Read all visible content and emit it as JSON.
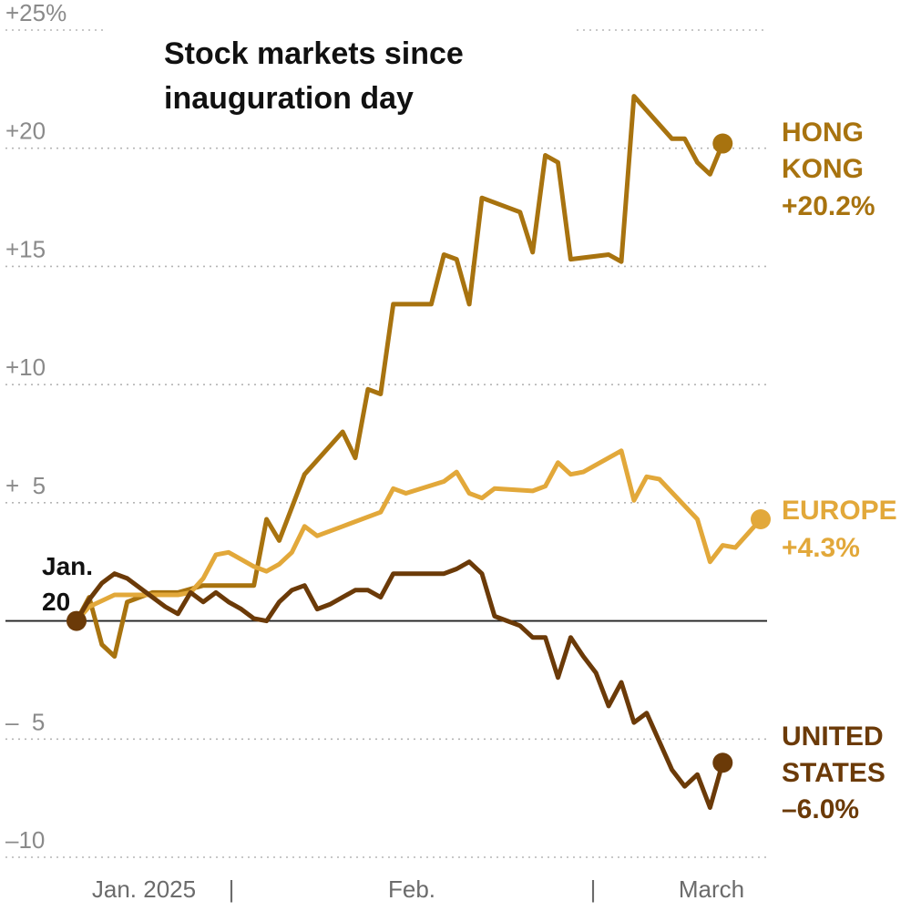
{
  "chart_data": {
    "type": "line",
    "title_lines": [
      "Stock markets since",
      "inauguration day"
    ],
    "start_label_lines": [
      "Jan.",
      "20"
    ],
    "y_axis": {
      "ylim": [
        -10,
        25
      ],
      "ticks": [
        25,
        20,
        15,
        10,
        5,
        -5,
        -10
      ],
      "tick_labels": [
        "+25%",
        "+20",
        "+15",
        "+10",
        "+  5",
        "–  5",
        "–10"
      ]
    },
    "x_axis": {
      "labels": [
        "Jan. 2025",
        "Feb.",
        "March"
      ],
      "separators": [
        "|",
        "|"
      ]
    },
    "day_range": [
      0,
      54
    ],
    "grid": true,
    "zero_line": true,
    "series": [
      {
        "name": "HONG KONG",
        "end_label_lines": [
          "HONG",
          "KONG",
          "+20.2%"
        ],
        "end_value": 20.2,
        "color": "#a8730f",
        "points": [
          [
            0,
            0
          ],
          [
            1,
            1
          ],
          [
            2,
            -1
          ],
          [
            3,
            -1.5
          ],
          [
            4,
            0.8
          ],
          [
            6,
            1.2
          ],
          [
            8,
            1.2
          ],
          [
            10,
            1.5
          ],
          [
            12,
            1.5
          ],
          [
            14,
            1.5
          ],
          [
            15,
            4.3
          ],
          [
            16,
            3.4
          ],
          [
            18,
            6.2
          ],
          [
            21,
            8
          ],
          [
            22,
            6.9
          ],
          [
            23,
            9.8
          ],
          [
            24,
            9.6
          ],
          [
            25,
            13.4
          ],
          [
            28,
            13.4
          ],
          [
            29,
            15.5
          ],
          [
            30,
            15.3
          ],
          [
            31,
            13.4
          ],
          [
            32,
            17.9
          ],
          [
            35,
            17.3
          ],
          [
            36,
            15.6
          ],
          [
            37,
            19.7
          ],
          [
            38,
            19.4
          ],
          [
            39,
            15.3
          ],
          [
            42,
            15.5
          ],
          [
            43,
            15.2
          ],
          [
            44,
            22.2
          ],
          [
            47,
            20.4
          ],
          [
            48,
            20.4
          ],
          [
            49,
            19.4
          ],
          [
            50,
            18.9
          ],
          [
            51,
            20.2
          ]
        ]
      },
      {
        "name": "EUROPE",
        "end_label_lines": [
          "EUROPE",
          "+4.3%"
        ],
        "end_value": 4.3,
        "color": "#e2a83a",
        "points": [
          [
            0,
            0
          ],
          [
            1,
            0.6
          ],
          [
            3,
            1.1
          ],
          [
            6,
            1.1
          ],
          [
            8,
            1.1
          ],
          [
            9,
            1.2
          ],
          [
            10,
            1.8
          ],
          [
            11,
            2.8
          ],
          [
            12,
            2.9
          ],
          [
            13,
            2.6
          ],
          [
            14,
            2.3
          ],
          [
            15,
            2.1
          ],
          [
            16,
            2.4
          ],
          [
            17,
            2.9
          ],
          [
            18,
            4.0
          ],
          [
            19,
            3.6
          ],
          [
            21,
            4.0
          ],
          [
            24,
            4.6
          ],
          [
            25,
            5.6
          ],
          [
            26,
            5.4
          ],
          [
            29,
            5.9
          ],
          [
            30,
            6.3
          ],
          [
            31,
            5.4
          ],
          [
            32,
            5.2
          ],
          [
            33,
            5.6
          ],
          [
            36,
            5.5
          ],
          [
            37,
            5.7
          ],
          [
            38,
            6.7
          ],
          [
            39,
            6.2
          ],
          [
            40,
            6.3
          ],
          [
            43,
            7.2
          ],
          [
            44,
            5.1
          ],
          [
            45,
            6.1
          ],
          [
            46,
            6.0
          ],
          [
            49,
            4.3
          ],
          [
            50,
            2.5
          ],
          [
            51,
            3.2
          ],
          [
            52,
            3.1
          ],
          [
            53,
            3.7
          ],
          [
            54,
            4.3
          ]
        ]
      },
      {
        "name": "UNITED STATES",
        "end_label_lines": [
          "UNITED",
          "STATES",
          "–6.0%"
        ],
        "end_value": -6.0,
        "color": "#6b3a08",
        "points": [
          [
            0,
            0
          ],
          [
            1,
            0.9
          ],
          [
            2,
            1.6
          ],
          [
            3,
            2.0
          ],
          [
            4,
            1.8
          ],
          [
            5,
            1.4
          ],
          [
            6,
            1.0
          ],
          [
            7,
            0.6
          ],
          [
            8,
            0.3
          ],
          [
            9,
            1.2
          ],
          [
            10,
            0.8
          ],
          [
            11,
            1.2
          ],
          [
            12,
            0.8
          ],
          [
            13,
            0.5
          ],
          [
            14,
            0.1
          ],
          [
            15,
            0.0
          ],
          [
            16,
            0.8
          ],
          [
            17,
            1.3
          ],
          [
            18,
            1.5
          ],
          [
            19,
            0.5
          ],
          [
            20,
            0.7
          ],
          [
            21,
            1.0
          ],
          [
            22,
            1.3
          ],
          [
            23,
            1.3
          ],
          [
            24,
            1.0
          ],
          [
            25,
            2.0
          ],
          [
            29,
            2.0
          ],
          [
            30,
            2.2
          ],
          [
            31,
            2.5
          ],
          [
            32,
            2.0
          ],
          [
            33,
            0.2
          ],
          [
            34,
            0.0
          ],
          [
            35,
            -0.2
          ],
          [
            36,
            -0.7
          ],
          [
            37,
            -0.7
          ],
          [
            38,
            -2.4
          ],
          [
            39,
            -0.7
          ],
          [
            40,
            -1.5
          ],
          [
            41,
            -2.2
          ],
          [
            42,
            -3.6
          ],
          [
            43,
            -2.6
          ],
          [
            44,
            -4.3
          ],
          [
            45,
            -3.9
          ],
          [
            47,
            -6.3
          ],
          [
            48,
            -7.0
          ],
          [
            49,
            -6.5
          ],
          [
            50,
            -7.9
          ],
          [
            51,
            -6.0
          ]
        ]
      }
    ]
  }
}
